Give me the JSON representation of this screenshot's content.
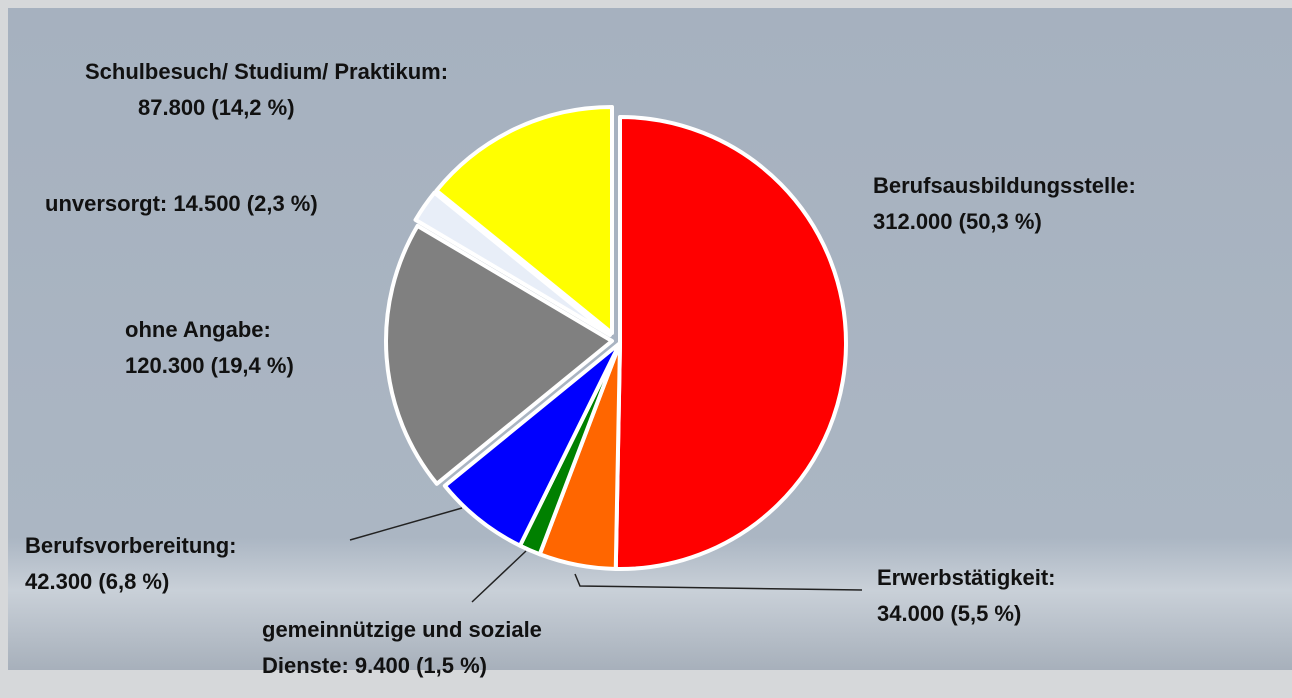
{
  "chart_data": {
    "type": "pie",
    "categories": [
      "Berufsausbildungsstelle:",
      "Erwerbstätigkeit:",
      "gemeinnützige und soziale Dienste:",
      "Berufsvorbereitung:",
      "ohne Angabe:",
      "unversorgt:",
      "Schulbesuch/ Studium/ Praktikum:"
    ],
    "values": [
      312000,
      34000,
      9400,
      42300,
      120300,
      14500,
      87800
    ],
    "value_labels": [
      "312.000 (50,3 %)",
      "34.000 (5,5 %)",
      "9.400 (1,5 %)",
      "42.300 (6,8 %)",
      "120.300 (19,4 %)",
      "14.500 (2,3 %)",
      "87.800 (14,2 %)"
    ],
    "colors": [
      "#ff0000",
      "#ff6600",
      "#008000",
      "#0000ff",
      "#808080",
      "#e8eef8",
      "#ffff00"
    ]
  }
}
